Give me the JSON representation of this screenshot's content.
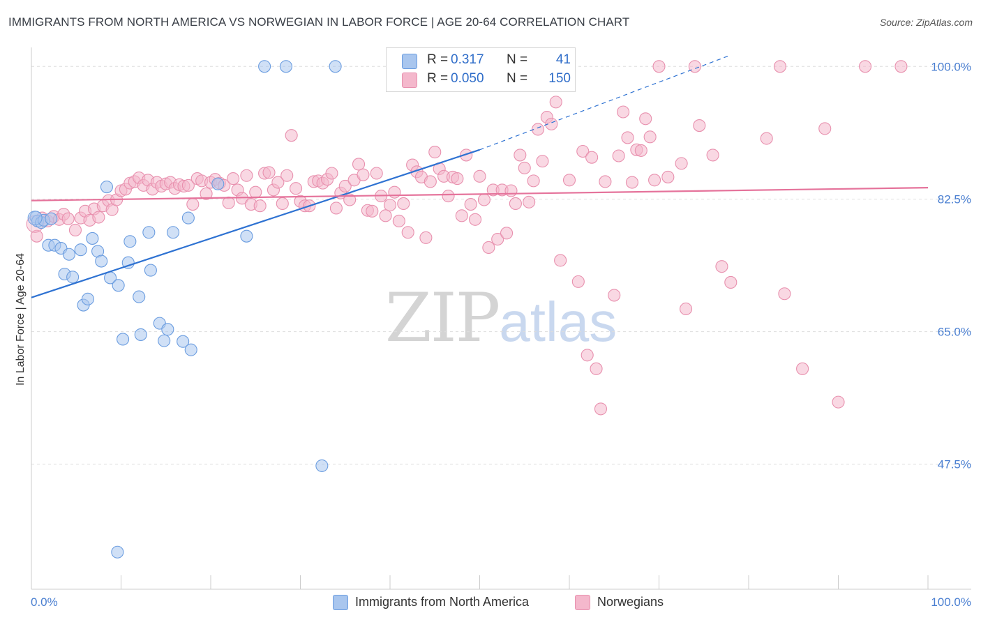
{
  "title": "IMMIGRANTS FROM NORTH AMERICA VS NORWEGIAN IN LABOR FORCE | AGE 20-64 CORRELATION CHART",
  "source": "Source: ZipAtlas.com",
  "watermark": {
    "zip": "ZIP",
    "atlas": "atlas"
  },
  "legend_top": {
    "r_label": "R =",
    "n_label": "N =",
    "rows": [
      {
        "r": "0.317",
        "n": "41"
      },
      {
        "r": "0.050",
        "n": "150"
      }
    ]
  },
  "legend_bottom": [
    "Immigrants from North America",
    "Norwegians"
  ],
  "colors": {
    "blue_fill": "#a9c6ee",
    "blue_stroke": "#6b9de0",
    "blue_line": "#2e72d2",
    "pink_fill": "#f4b8cc",
    "pink_stroke": "#e890ae",
    "pink_line": "#e5739b",
    "grid": "#dddddd",
    "tick_text": "#4a7fd1"
  },
  "chart_data": {
    "type": "scatter",
    "title": "IMMIGRANTS FROM NORTH AMERICA VS NORWEGIAN IN LABOR FORCE | AGE 20-64 CORRELATION CHART",
    "xlabel": "",
    "ylabel": "In Labor Force | Age 20-64",
    "xlim": [
      0,
      100
    ],
    "ylim": [
      31,
      101.5
    ],
    "x_tick_labels": [
      "0.0%",
      "100.0%"
    ],
    "y_ticks": [
      {
        "value": 100.0,
        "label": "100.0%"
      },
      {
        "value": 82.5,
        "label": "82.5%"
      },
      {
        "value": 65.0,
        "label": "65.0%"
      },
      {
        "value": 47.5,
        "label": "47.5%"
      }
    ],
    "grid": true,
    "series": [
      {
        "name": "Immigrants from North America",
        "color": "blue",
        "R": 0.317,
        "N": 41,
        "trend": {
          "x0": 0,
          "y0": 69.5,
          "x1": 50,
          "y1": 89.0,
          "dash_to_x": 78,
          "dash_to_y": 101.5
        },
        "points": [
          [
            0.5,
            80.1
          ],
          [
            0.7,
            79.6
          ],
          [
            1.1,
            79.4
          ],
          [
            1.9,
            76.4
          ],
          [
            2.6,
            76.4
          ],
          [
            3.3,
            76.0
          ],
          [
            4.2,
            75.2
          ],
          [
            3.7,
            72.6
          ],
          [
            4.6,
            72.2
          ],
          [
            5.5,
            75.8
          ],
          [
            5.8,
            68.5
          ],
          [
            6.3,
            69.3
          ],
          [
            6.8,
            77.3
          ],
          [
            7.4,
            75.6
          ],
          [
            7.8,
            74.3
          ],
          [
            8.4,
            84.1
          ],
          [
            8.8,
            72.1
          ],
          [
            9.7,
            71.1
          ],
          [
            10.2,
            64.0
          ],
          [
            10.8,
            74.1
          ],
          [
            11.0,
            76.9
          ],
          [
            12.0,
            69.6
          ],
          [
            12.2,
            64.6
          ],
          [
            13.1,
            78.1
          ],
          [
            13.3,
            73.1
          ],
          [
            14.3,
            66.1
          ],
          [
            14.8,
            63.8
          ],
          [
            15.2,
            65.3
          ],
          [
            15.8,
            78.1
          ],
          [
            16.9,
            63.7
          ],
          [
            17.5,
            80.0
          ],
          [
            17.8,
            62.6
          ],
          [
            20.8,
            84.5
          ],
          [
            24.0,
            77.6
          ],
          [
            26.0,
            100.0
          ],
          [
            28.4,
            100.0
          ],
          [
            32.4,
            47.3
          ],
          [
            33.9,
            100.0
          ],
          [
            9.6,
            35.9
          ],
          [
            1.4,
            79.7
          ],
          [
            2.2,
            79.9
          ]
        ]
      },
      {
        "name": "Norwegians",
        "color": "pink",
        "R": 0.05,
        "N": 150,
        "trend": {
          "x0": 0,
          "y0": 82.3,
          "x1": 100,
          "y1": 84.0
        },
        "points": [
          [
            0.6,
            77.6
          ],
          [
            1.2,
            80.0
          ],
          [
            1.8,
            79.6
          ],
          [
            2.5,
            80.2
          ],
          [
            3.1,
            79.8
          ],
          [
            3.6,
            80.5
          ],
          [
            4.1,
            79.9
          ],
          [
            4.9,
            78.4
          ],
          [
            5.5,
            80.0
          ],
          [
            6.0,
            80.9
          ],
          [
            6.5,
            79.7
          ],
          [
            7.0,
            81.2
          ],
          [
            7.5,
            80.1
          ],
          [
            8.0,
            81.6
          ],
          [
            8.6,
            82.3
          ],
          [
            9.0,
            81.1
          ],
          [
            9.5,
            82.4
          ],
          [
            10.0,
            83.6
          ],
          [
            10.5,
            83.8
          ],
          [
            11.0,
            84.6
          ],
          [
            11.5,
            84.8
          ],
          [
            12.0,
            85.3
          ],
          [
            12.5,
            84.3
          ],
          [
            13.0,
            85.0
          ],
          [
            13.5,
            83.8
          ],
          [
            14.0,
            84.7
          ],
          [
            14.5,
            84.2
          ],
          [
            15.0,
            84.5
          ],
          [
            15.5,
            84.7
          ],
          [
            16.0,
            83.9
          ],
          [
            16.5,
            84.4
          ],
          [
            17.0,
            84.2
          ],
          [
            17.5,
            84.3
          ],
          [
            18.0,
            81.8
          ],
          [
            18.5,
            85.2
          ],
          [
            19.0,
            84.9
          ],
          [
            19.5,
            83.2
          ],
          [
            20.0,
            84.7
          ],
          [
            20.5,
            85.1
          ],
          [
            21.0,
            84.6
          ],
          [
            21.5,
            84.3
          ],
          [
            22.0,
            82.0
          ],
          [
            22.5,
            85.2
          ],
          [
            23.0,
            83.7
          ],
          [
            23.5,
            82.6
          ],
          [
            24.0,
            85.6
          ],
          [
            24.5,
            81.8
          ],
          [
            25.0,
            83.4
          ],
          [
            25.5,
            81.6
          ],
          [
            26.0,
            85.9
          ],
          [
            26.5,
            86.0
          ],
          [
            27.0,
            83.7
          ],
          [
            27.5,
            84.7
          ],
          [
            28.0,
            81.9
          ],
          [
            28.5,
            85.6
          ],
          [
            29.0,
            90.9
          ],
          [
            29.5,
            83.9
          ],
          [
            30.0,
            82.2
          ],
          [
            30.5,
            81.6
          ],
          [
            31.0,
            81.6
          ],
          [
            31.5,
            84.8
          ],
          [
            32.0,
            84.9
          ],
          [
            32.5,
            84.6
          ],
          [
            33.0,
            85.1
          ],
          [
            33.5,
            85.9
          ],
          [
            34.0,
            81.3
          ],
          [
            34.5,
            83.3
          ],
          [
            35.0,
            84.2
          ],
          [
            35.5,
            82.4
          ],
          [
            36.0,
            85.0
          ],
          [
            36.5,
            87.1
          ],
          [
            37.0,
            85.7
          ],
          [
            37.5,
            81.0
          ],
          [
            38.0,
            80.9
          ],
          [
            38.5,
            85.9
          ],
          [
            39.0,
            82.9
          ],
          [
            39.5,
            80.3
          ],
          [
            40.0,
            81.7
          ],
          [
            40.5,
            83.4
          ],
          [
            41.0,
            79.6
          ],
          [
            41.5,
            81.9
          ],
          [
            42.0,
            78.1
          ],
          [
            42.5,
            87.0
          ],
          [
            43.0,
            86.1
          ],
          [
            43.5,
            85.4
          ],
          [
            44.0,
            77.4
          ],
          [
            44.5,
            84.8
          ],
          [
            45.0,
            88.7
          ],
          [
            45.5,
            86.5
          ],
          [
            46.0,
            85.5
          ],
          [
            46.5,
            82.9
          ],
          [
            47.0,
            85.4
          ],
          [
            47.5,
            85.2
          ],
          [
            48.0,
            80.3
          ],
          [
            48.5,
            88.3
          ],
          [
            49.0,
            81.8
          ],
          [
            49.5,
            79.8
          ],
          [
            50.0,
            85.5
          ],
          [
            50.5,
            82.4
          ],
          [
            51.0,
            76.1
          ],
          [
            51.5,
            83.7
          ],
          [
            52.0,
            77.2
          ],
          [
            52.5,
            83.7
          ],
          [
            53.0,
            78.0
          ],
          [
            53.5,
            83.6
          ],
          [
            54.0,
            81.9
          ],
          [
            54.5,
            88.3
          ],
          [
            55.0,
            86.6
          ],
          [
            55.5,
            82.1
          ],
          [
            56.0,
            84.9
          ],
          [
            56.5,
            91.7
          ],
          [
            57.0,
            87.5
          ],
          [
            57.5,
            93.3
          ],
          [
            58.0,
            92.4
          ],
          [
            58.5,
            95.3
          ],
          [
            59.0,
            74.4
          ],
          [
            60.0,
            85.0
          ],
          [
            61.0,
            71.6
          ],
          [
            61.5,
            88.8
          ],
          [
            62.0,
            61.9
          ],
          [
            62.5,
            88.0
          ],
          [
            63.0,
            60.1
          ],
          [
            63.5,
            54.8
          ],
          [
            64.0,
            84.8
          ],
          [
            65.0,
            69.8
          ],
          [
            65.5,
            88.2
          ],
          [
            66.0,
            94.0
          ],
          [
            66.5,
            90.6
          ],
          [
            67.0,
            84.7
          ],
          [
            67.5,
            89.0
          ],
          [
            68.0,
            88.9
          ],
          [
            68.5,
            93.1
          ],
          [
            69.0,
            90.7
          ],
          [
            69.5,
            85.0
          ],
          [
            70.0,
            100.0
          ],
          [
            71.0,
            85.4
          ],
          [
            72.5,
            87.2
          ],
          [
            73.0,
            68.0
          ],
          [
            74.0,
            100.0
          ],
          [
            74.5,
            92.2
          ],
          [
            76.0,
            88.3
          ],
          [
            77.0,
            73.6
          ],
          [
            78.0,
            71.5
          ],
          [
            82.0,
            90.5
          ],
          [
            83.5,
            100.0
          ],
          [
            84.0,
            70.0
          ],
          [
            86.0,
            60.1
          ],
          [
            88.5,
            91.8
          ],
          [
            90.0,
            55.7
          ],
          [
            93.0,
            100.0
          ],
          [
            97.0,
            100.0
          ]
        ]
      }
    ]
  }
}
